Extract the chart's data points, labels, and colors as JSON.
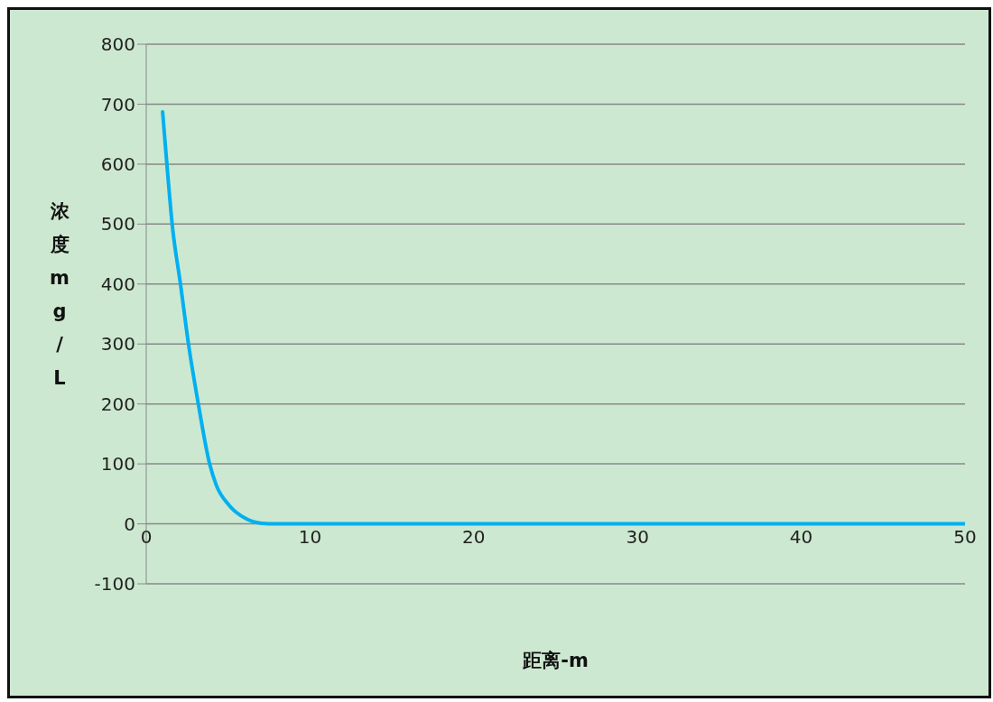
{
  "chart_data": {
    "type": "line",
    "xlabel": "距离-m",
    "ylabel": "浓度mg/L",
    "series": [
      {
        "color": "#00b0f0",
        "x": [
          1,
          1.26,
          1.59,
          2.09,
          2.58,
          3.18,
          3.87,
          4.27,
          5.06,
          6.06,
          7.05,
          8,
          10,
          20,
          30,
          40,
          50
        ],
        "values": [
          687,
          600,
          498,
          400,
          300,
          200,
          100,
          65,
          31,
          9,
          1,
          0,
          0,
          0,
          0,
          0,
          0
        ]
      }
    ],
    "xlim": [
      0,
      50
    ],
    "xticks": [
      0,
      10,
      20,
      30,
      40,
      50
    ],
    "ylim": [
      -100,
      800
    ],
    "yticks": [
      -100,
      0,
      100,
      200,
      300,
      400,
      500,
      600,
      700,
      800
    ],
    "grid": "y",
    "legend": false,
    "marker": "none",
    "line_style": "solid"
  }
}
